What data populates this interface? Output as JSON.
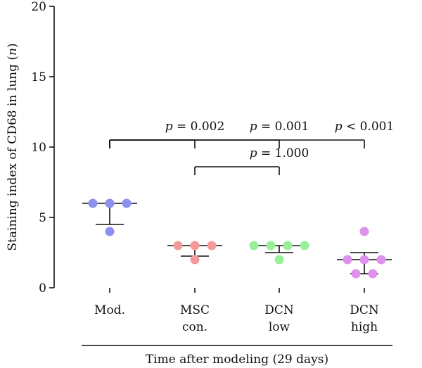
{
  "chart_data": {
    "type": "scatter",
    "ylabel": "Staining index of CD68 in lung (n)",
    "ylabel_parts": {
      "main": "Staining index of CD68 in lung (",
      "italic": "n",
      "close": ")"
    },
    "xlabel": "Time after modeling (29 days)",
    "ylim": [
      0,
      20
    ],
    "yticks": [
      0,
      5,
      10,
      15,
      20
    ],
    "grid": false,
    "groups": [
      {
        "label_lines": [
          "Mod."
        ],
        "color": "#8f8ff0",
        "points": [
          6,
          6,
          6,
          4
        ],
        "mean": 6,
        "err_low": 4.5,
        "err_high": 6
      },
      {
        "label_lines": [
          "MSC",
          "con."
        ],
        "color": "#f49a9a",
        "points": [
          3,
          3,
          3,
          2
        ],
        "mean": 3,
        "err_low": 2.25,
        "err_high": 3
      },
      {
        "label_lines": [
          "DCN",
          "low"
        ],
        "color": "#98ef98",
        "points": [
          3,
          3,
          3,
          3,
          2
        ],
        "mean": 3,
        "err_low": 2.5,
        "err_high": 3
      },
      {
        "label_lines": [
          "DCN",
          "high"
        ],
        "color": "#de92ee",
        "points": [
          4,
          2,
          2,
          2,
          1,
          1
        ],
        "mean": 2,
        "err_low": 1,
        "err_high": 2.5
      }
    ],
    "comparisons": [
      {
        "from": 0,
        "to": 1,
        "y": 10.5,
        "p_prefix": "p",
        "p_text": " = 0.002"
      },
      {
        "from": 0,
        "to": 2,
        "y": 10.5,
        "p_prefix": "p",
        "p_text": " = 0.001"
      },
      {
        "from": 0,
        "to": 3,
        "y": 10.5,
        "p_prefix": "p",
        "p_text": " < 0.001"
      },
      {
        "from": 1,
        "to": 2,
        "y": 8.6,
        "p_prefix": "p",
        "p_text": " = 1.000"
      }
    ]
  }
}
